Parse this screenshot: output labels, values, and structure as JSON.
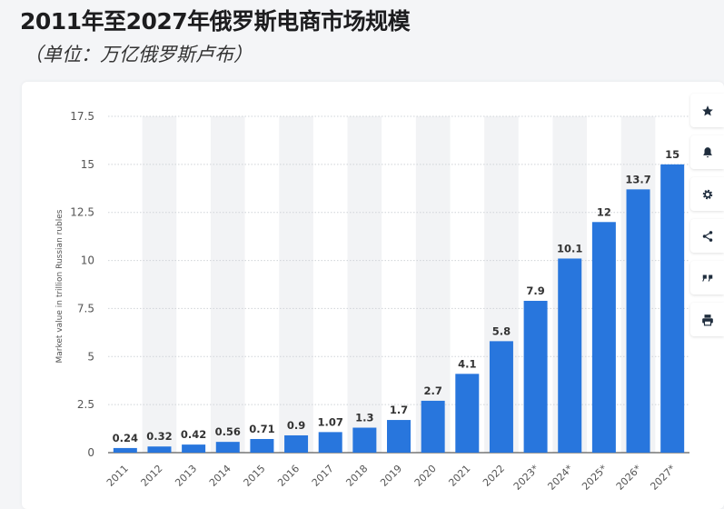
{
  "header": {
    "title": "2011年至2027年俄罗斯电商市场规模",
    "subtitle": "（单位：万亿俄罗斯卢布）"
  },
  "toolbar": {
    "buttons": [
      {
        "name": "star-icon"
      },
      {
        "name": "bell-icon"
      },
      {
        "name": "gear-icon"
      },
      {
        "name": "share-icon"
      },
      {
        "name": "quote-icon"
      },
      {
        "name": "print-icon"
      }
    ]
  },
  "colors": {
    "bar": "#2876dd",
    "band": "#f2f3f5",
    "grid": "#cfd3d8",
    "label": "#333333"
  },
  "chart_data": {
    "type": "bar",
    "categories": [
      "2011",
      "2012",
      "2013",
      "2014",
      "2015",
      "2016",
      "2017",
      "2018",
      "2019",
      "2020",
      "2021",
      "2022",
      "2023*",
      "2024*",
      "2025*",
      "2026*",
      "2027*"
    ],
    "values": [
      0.24,
      0.32,
      0.42,
      0.56,
      0.71,
      0.9,
      1.07,
      1.3,
      1.7,
      2.7,
      4.1,
      5.8,
      7.9,
      10.1,
      12,
      13.7,
      15
    ],
    "data_labels": [
      "0.24",
      "0.32",
      "0.42",
      "0.56",
      "0.71",
      "0.9",
      "1.07",
      "1.3",
      "1.7",
      "2.7",
      "4.1",
      "5.8",
      "7.9",
      "10.1",
      "12",
      "13.7",
      "15"
    ],
    "title": "2011年至2027年俄罗斯电商市场规模",
    "xlabel": "",
    "ylabel": "Market value in trillion Russian rubles",
    "ylim": [
      0,
      17.5
    ],
    "yticks": [
      0,
      2.5,
      5,
      7.5,
      10,
      12.5,
      15,
      17.5
    ],
    "ytick_labels": [
      "0",
      "2.5",
      "5",
      "7.5",
      "10",
      "12.5",
      "15",
      "17.5"
    ],
    "grid": true,
    "legend": "none"
  }
}
